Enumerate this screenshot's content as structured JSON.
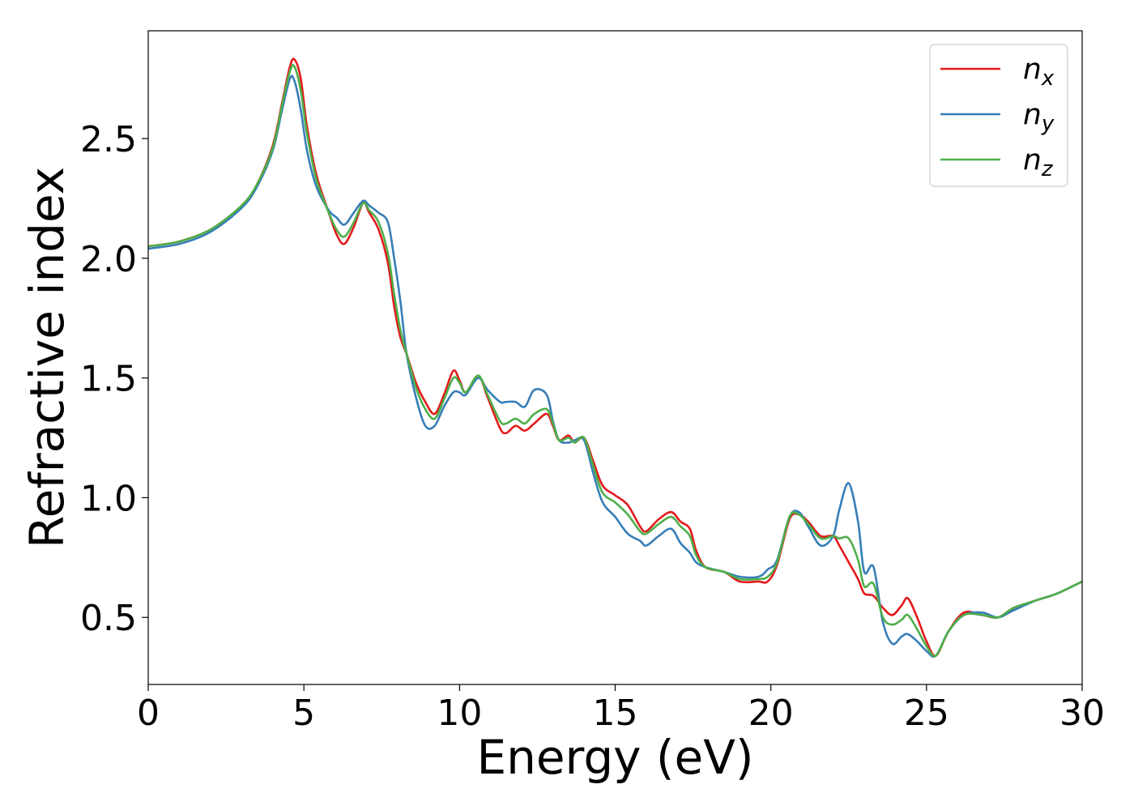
{
  "chart_data": {
    "type": "line",
    "title": "",
    "xlabel": "Energy (eV)",
    "ylabel": "Refractive index",
    "xlim": [
      0,
      30
    ],
    "ylim": [
      0.22,
      2.95
    ],
    "xticks": [
      0,
      5,
      10,
      15,
      20,
      25,
      30
    ],
    "xtick_labels": [
      "0",
      "5",
      "10",
      "15",
      "20",
      "25",
      "30"
    ],
    "yticks": [
      0.5,
      1.0,
      1.5,
      2.0,
      2.5
    ],
    "ytick_labels": [
      "0.5",
      "1.0",
      "1.5",
      "2.0",
      "2.5"
    ],
    "grid": false,
    "legend_position": "top-right",
    "series": [
      {
        "name": "n_x",
        "label_main": "n",
        "label_sub": "x",
        "color": "#e41a1c",
        "points": [
          [
            0,
            2.05
          ],
          [
            1,
            2.07
          ],
          [
            2,
            2.12
          ],
          [
            3,
            2.22
          ],
          [
            3.5,
            2.31
          ],
          [
            4,
            2.47
          ],
          [
            4.3,
            2.65
          ],
          [
            4.55,
            2.8
          ],
          [
            4.7,
            2.83
          ],
          [
            4.9,
            2.75
          ],
          [
            5.1,
            2.55
          ],
          [
            5.4,
            2.35
          ],
          [
            5.8,
            2.19
          ],
          [
            6.05,
            2.1
          ],
          [
            6.3,
            2.06
          ],
          [
            6.6,
            2.13
          ],
          [
            6.9,
            2.23
          ],
          [
            7.1,
            2.19
          ],
          [
            7.4,
            2.12
          ],
          [
            7.7,
            1.98
          ],
          [
            7.9,
            1.8
          ],
          [
            8.1,
            1.67
          ],
          [
            8.3,
            1.6
          ],
          [
            8.6,
            1.48
          ],
          [
            8.9,
            1.4
          ],
          [
            9.2,
            1.35
          ],
          [
            9.5,
            1.43
          ],
          [
            9.8,
            1.53
          ],
          [
            10.0,
            1.49
          ],
          [
            10.2,
            1.44
          ],
          [
            10.6,
            1.51
          ],
          [
            10.9,
            1.42
          ],
          [
            11.3,
            1.29
          ],
          [
            11.5,
            1.27
          ],
          [
            11.8,
            1.3
          ],
          [
            12.1,
            1.28
          ],
          [
            12.4,
            1.31
          ],
          [
            12.8,
            1.35
          ],
          [
            13.0,
            1.3
          ],
          [
            13.2,
            1.24
          ],
          [
            13.5,
            1.26
          ],
          [
            13.7,
            1.23
          ],
          [
            14.0,
            1.25
          ],
          [
            14.3,
            1.15
          ],
          [
            14.6,
            1.05
          ],
          [
            15.0,
            1.01
          ],
          [
            15.4,
            0.97
          ],
          [
            15.8,
            0.88
          ],
          [
            16.0,
            0.86
          ],
          [
            16.4,
            0.91
          ],
          [
            16.8,
            0.94
          ],
          [
            17.1,
            0.9
          ],
          [
            17.4,
            0.87
          ],
          [
            17.6,
            0.78
          ],
          [
            17.9,
            0.71
          ],
          [
            18.5,
            0.69
          ],
          [
            19.0,
            0.65
          ],
          [
            19.6,
            0.65
          ],
          [
            19.9,
            0.65
          ],
          [
            20.2,
            0.72
          ],
          [
            20.6,
            0.91
          ],
          [
            20.9,
            0.93
          ],
          [
            21.2,
            0.9
          ],
          [
            21.6,
            0.84
          ],
          [
            22.0,
            0.84
          ],
          [
            22.2,
            0.8
          ],
          [
            22.5,
            0.73
          ],
          [
            22.8,
            0.66
          ],
          [
            23.0,
            0.6
          ],
          [
            23.3,
            0.59
          ],
          [
            23.6,
            0.54
          ],
          [
            23.9,
            0.51
          ],
          [
            24.2,
            0.55
          ],
          [
            24.4,
            0.58
          ],
          [
            24.7,
            0.5
          ],
          [
            25.0,
            0.4
          ],
          [
            25.3,
            0.34
          ],
          [
            25.7,
            0.44
          ],
          [
            26.2,
            0.52
          ],
          [
            26.8,
            0.51
          ],
          [
            27.3,
            0.5
          ],
          [
            27.8,
            0.54
          ],
          [
            28.5,
            0.57
          ],
          [
            29.2,
            0.6
          ],
          [
            30,
            0.65
          ]
        ]
      },
      {
        "name": "n_y",
        "label_main": "n",
        "label_sub": "y",
        "color": "#377eb8",
        "points": [
          [
            0,
            2.04
          ],
          [
            1,
            2.06
          ],
          [
            2,
            2.11
          ],
          [
            3,
            2.21
          ],
          [
            3.5,
            2.3
          ],
          [
            4,
            2.45
          ],
          [
            4.3,
            2.62
          ],
          [
            4.55,
            2.75
          ],
          [
            4.7,
            2.74
          ],
          [
            4.9,
            2.62
          ],
          [
            5.1,
            2.45
          ],
          [
            5.4,
            2.3
          ],
          [
            5.8,
            2.2
          ],
          [
            6.05,
            2.17
          ],
          [
            6.3,
            2.14
          ],
          [
            6.6,
            2.19
          ],
          [
            6.9,
            2.24
          ],
          [
            7.1,
            2.22
          ],
          [
            7.4,
            2.19
          ],
          [
            7.7,
            2.15
          ],
          [
            7.9,
            2.0
          ],
          [
            8.1,
            1.82
          ],
          [
            8.3,
            1.6
          ],
          [
            8.6,
            1.42
          ],
          [
            8.9,
            1.3
          ],
          [
            9.2,
            1.3
          ],
          [
            9.5,
            1.38
          ],
          [
            9.8,
            1.44
          ],
          [
            10.0,
            1.44
          ],
          [
            10.2,
            1.43
          ],
          [
            10.6,
            1.5
          ],
          [
            10.9,
            1.45
          ],
          [
            11.3,
            1.4
          ],
          [
            11.5,
            1.4
          ],
          [
            11.8,
            1.4
          ],
          [
            12.1,
            1.38
          ],
          [
            12.4,
            1.45
          ],
          [
            12.8,
            1.43
          ],
          [
            13.0,
            1.32
          ],
          [
            13.2,
            1.24
          ],
          [
            13.5,
            1.23
          ],
          [
            13.7,
            1.24
          ],
          [
            14.0,
            1.24
          ],
          [
            14.3,
            1.1
          ],
          [
            14.6,
            0.98
          ],
          [
            15.0,
            0.92
          ],
          [
            15.4,
            0.85
          ],
          [
            15.8,
            0.82
          ],
          [
            16.0,
            0.8
          ],
          [
            16.4,
            0.84
          ],
          [
            16.8,
            0.87
          ],
          [
            17.1,
            0.81
          ],
          [
            17.4,
            0.77
          ],
          [
            17.6,
            0.73
          ],
          [
            17.9,
            0.71
          ],
          [
            18.5,
            0.69
          ],
          [
            19.0,
            0.67
          ],
          [
            19.6,
            0.67
          ],
          [
            19.9,
            0.7
          ],
          [
            20.2,
            0.74
          ],
          [
            20.6,
            0.92
          ],
          [
            20.9,
            0.94
          ],
          [
            21.2,
            0.88
          ],
          [
            21.6,
            0.8
          ],
          [
            22.0,
            0.84
          ],
          [
            22.2,
            0.95
          ],
          [
            22.5,
            1.06
          ],
          [
            22.8,
            0.9
          ],
          [
            23.0,
            0.69
          ],
          [
            23.3,
            0.71
          ],
          [
            23.6,
            0.48
          ],
          [
            23.9,
            0.39
          ],
          [
            24.2,
            0.42
          ],
          [
            24.4,
            0.43
          ],
          [
            24.7,
            0.4
          ],
          [
            25.0,
            0.36
          ],
          [
            25.3,
            0.34
          ],
          [
            25.7,
            0.44
          ],
          [
            26.2,
            0.51
          ],
          [
            26.8,
            0.52
          ],
          [
            27.3,
            0.5
          ],
          [
            27.8,
            0.53
          ],
          [
            28.5,
            0.57
          ],
          [
            29.2,
            0.6
          ],
          [
            30,
            0.65
          ]
        ]
      },
      {
        "name": "n_z",
        "label_main": "n",
        "label_sub": "z",
        "color": "#4daf4a",
        "points": [
          [
            0,
            2.05
          ],
          [
            1,
            2.07
          ],
          [
            2,
            2.12
          ],
          [
            3,
            2.22
          ],
          [
            3.5,
            2.31
          ],
          [
            4,
            2.46
          ],
          [
            4.3,
            2.64
          ],
          [
            4.55,
            2.78
          ],
          [
            4.7,
            2.8
          ],
          [
            4.9,
            2.7
          ],
          [
            5.1,
            2.52
          ],
          [
            5.4,
            2.33
          ],
          [
            5.8,
            2.19
          ],
          [
            6.05,
            2.12
          ],
          [
            6.3,
            2.09
          ],
          [
            6.6,
            2.15
          ],
          [
            6.9,
            2.23
          ],
          [
            7.1,
            2.2
          ],
          [
            7.4,
            2.15
          ],
          [
            7.7,
            2.02
          ],
          [
            7.9,
            1.85
          ],
          [
            8.1,
            1.7
          ],
          [
            8.3,
            1.6
          ],
          [
            8.6,
            1.46
          ],
          [
            8.9,
            1.37
          ],
          [
            9.2,
            1.33
          ],
          [
            9.5,
            1.41
          ],
          [
            9.8,
            1.5
          ],
          [
            10.0,
            1.48
          ],
          [
            10.2,
            1.44
          ],
          [
            10.6,
            1.51
          ],
          [
            10.9,
            1.43
          ],
          [
            11.3,
            1.32
          ],
          [
            11.5,
            1.31
          ],
          [
            11.8,
            1.33
          ],
          [
            12.1,
            1.31
          ],
          [
            12.4,
            1.35
          ],
          [
            12.8,
            1.37
          ],
          [
            13.0,
            1.31
          ],
          [
            13.2,
            1.24
          ],
          [
            13.5,
            1.25
          ],
          [
            13.7,
            1.23
          ],
          [
            14.0,
            1.25
          ],
          [
            14.3,
            1.13
          ],
          [
            14.6,
            1.02
          ],
          [
            15.0,
            0.98
          ],
          [
            15.4,
            0.93
          ],
          [
            15.8,
            0.86
          ],
          [
            16.0,
            0.85
          ],
          [
            16.4,
            0.89
          ],
          [
            16.8,
            0.92
          ],
          [
            17.1,
            0.88
          ],
          [
            17.4,
            0.84
          ],
          [
            17.6,
            0.76
          ],
          [
            17.9,
            0.71
          ],
          [
            18.5,
            0.69
          ],
          [
            19.0,
            0.66
          ],
          [
            19.6,
            0.66
          ],
          [
            19.9,
            0.67
          ],
          [
            20.2,
            0.73
          ],
          [
            20.6,
            0.92
          ],
          [
            20.9,
            0.93
          ],
          [
            21.2,
            0.89
          ],
          [
            21.6,
            0.83
          ],
          [
            22.0,
            0.84
          ],
          [
            22.2,
            0.83
          ],
          [
            22.5,
            0.83
          ],
          [
            22.8,
            0.74
          ],
          [
            23.0,
            0.63
          ],
          [
            23.3,
            0.64
          ],
          [
            23.6,
            0.5
          ],
          [
            23.9,
            0.47
          ],
          [
            24.2,
            0.49
          ],
          [
            24.4,
            0.51
          ],
          [
            24.7,
            0.45
          ],
          [
            25.0,
            0.38
          ],
          [
            25.3,
            0.34
          ],
          [
            25.7,
            0.44
          ],
          [
            26.2,
            0.51
          ],
          [
            26.8,
            0.51
          ],
          [
            27.3,
            0.5
          ],
          [
            27.8,
            0.54
          ],
          [
            28.5,
            0.57
          ],
          [
            29.2,
            0.6
          ],
          [
            30,
            0.65
          ]
        ]
      }
    ]
  }
}
